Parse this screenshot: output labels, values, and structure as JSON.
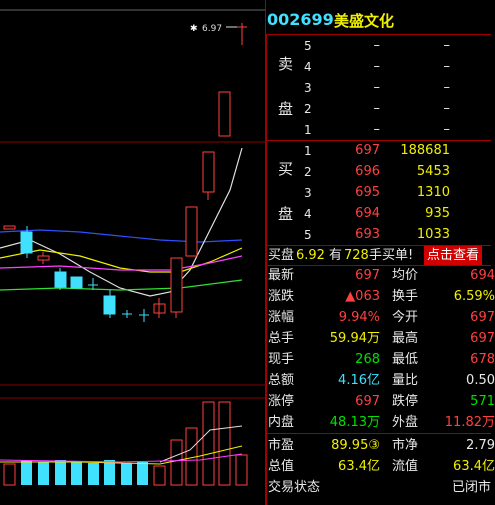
{
  "chart": {
    "price_marker": "6.97"
  },
  "header": {
    "code": "002699",
    "name": "美盛文化"
  },
  "sell": {
    "label_top": "卖",
    "label_bottom": "盘",
    "levels": [
      {
        "level": "5",
        "price": "–",
        "volume": "–"
      },
      {
        "level": "4",
        "price": "–",
        "volume": "–"
      },
      {
        "level": "3",
        "price": "–",
        "volume": "–"
      },
      {
        "level": "2",
        "price": "–",
        "volume": "–"
      },
      {
        "level": "1",
        "price": "–",
        "volume": "–"
      }
    ]
  },
  "buy": {
    "label_top": "买",
    "label_bottom": "盘",
    "levels": [
      {
        "level": "1",
        "price": "697",
        "volume": "188681"
      },
      {
        "level": "2",
        "price": "696",
        "volume": "5453"
      },
      {
        "level": "3",
        "price": "695",
        "volume": "1310"
      },
      {
        "level": "4",
        "price": "694",
        "volume": "935"
      },
      {
        "level": "5",
        "price": "693",
        "volume": "1033"
      }
    ]
  },
  "banner": {
    "parts": [
      "买盘",
      "6.92",
      "有",
      "728",
      "手买单!"
    ],
    "button": "点击查看"
  },
  "stats": [
    [
      {
        "label": "最新",
        "value": "697"
      },
      {
        "label": "均价",
        "value": "694"
      }
    ],
    [
      {
        "label": "涨跌",
        "value": "▲063"
      },
      {
        "label": "换手",
        "value": "6.59%"
      }
    ],
    [
      {
        "label": "涨幅",
        "value": "9.94%"
      },
      {
        "label": "今开",
        "value": "697"
      }
    ],
    [
      {
        "label": "总手",
        "value": "59.94万"
      },
      {
        "label": "最高",
        "value": "697"
      }
    ],
    [
      {
        "label": "现手",
        "value": "268"
      },
      {
        "label": "最低",
        "value": "678"
      }
    ],
    [
      {
        "label": "总额",
        "value": "4.16亿"
      },
      {
        "label": "量比",
        "value": "0.50"
      }
    ],
    [
      {
        "label": "涨停",
        "value": "697"
      },
      {
        "label": "跌停",
        "value": "571"
      }
    ],
    [
      {
        "label": "内盘",
        "value": "48.13万"
      },
      {
        "label": "外盘",
        "value": "11.82万"
      }
    ],
    [
      {
        "label": "市盈",
        "value": "89.95③"
      },
      {
        "label": "市净",
        "value": "2.79"
      }
    ],
    [
      {
        "label": "总值",
        "value": "63.4亿"
      },
      {
        "label": "流值",
        "value": "63.4亿"
      }
    ]
  ],
  "status": {
    "label": "交易状态",
    "value": "已闭市"
  }
}
